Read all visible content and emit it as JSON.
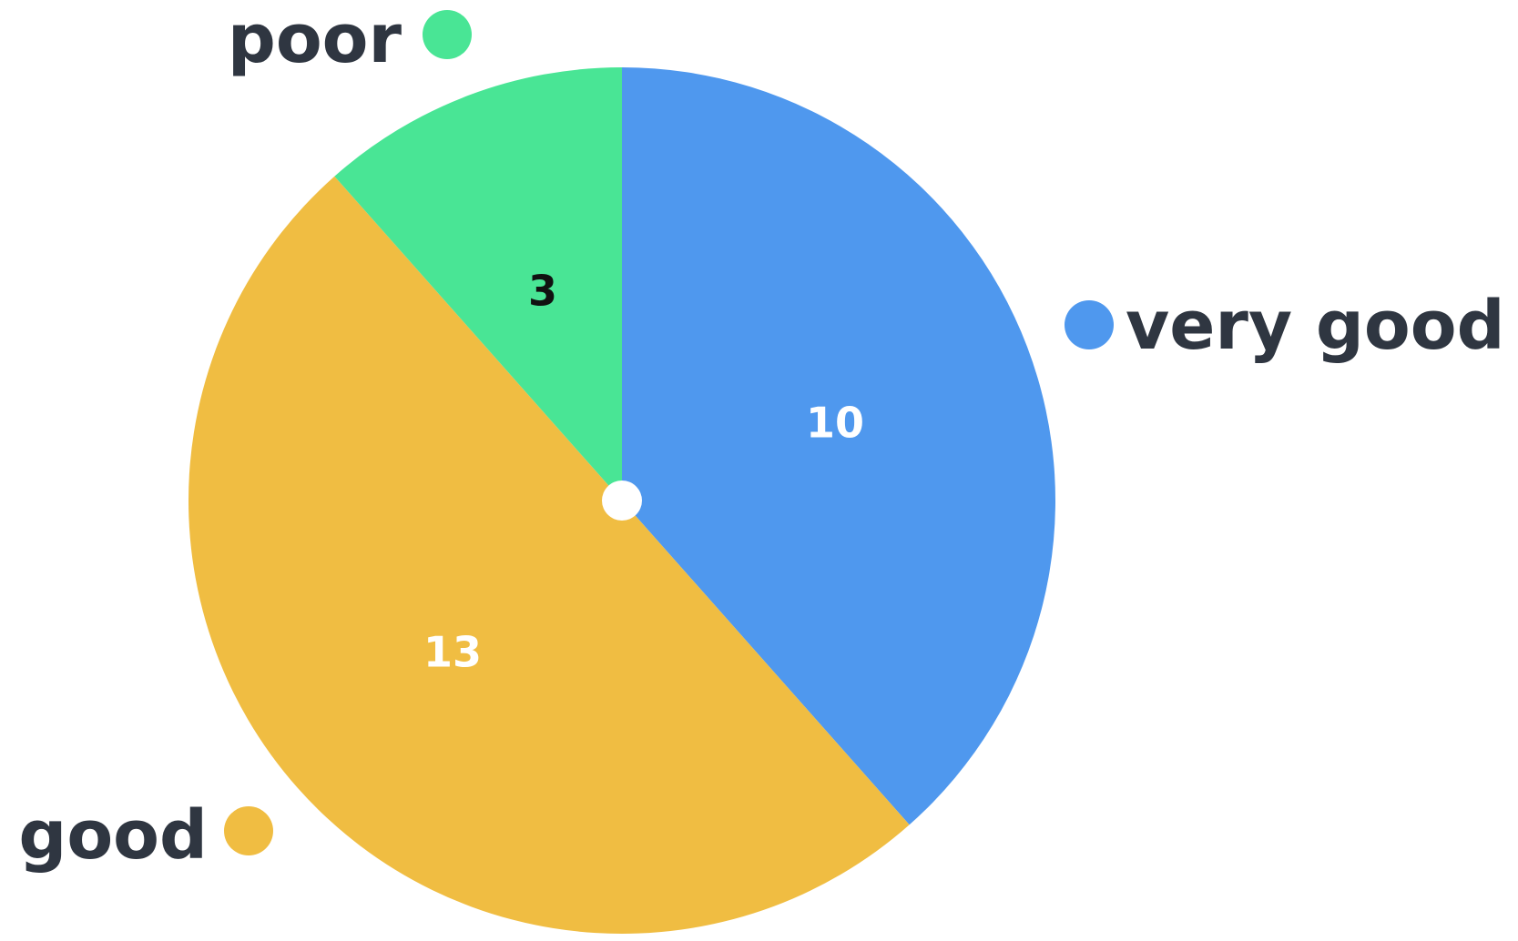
{
  "chart_data": {
    "type": "pie",
    "categories": [
      "very good",
      "good",
      "poor"
    ],
    "values": [
      10,
      13,
      3
    ],
    "title": "",
    "legend": "outside labels",
    "colors": [
      "#4f98ee",
      "#f0bd42",
      "#49e595"
    ],
    "value_label_colors": [
      "#ffffff",
      "#ffffff",
      "#111111"
    ]
  }
}
